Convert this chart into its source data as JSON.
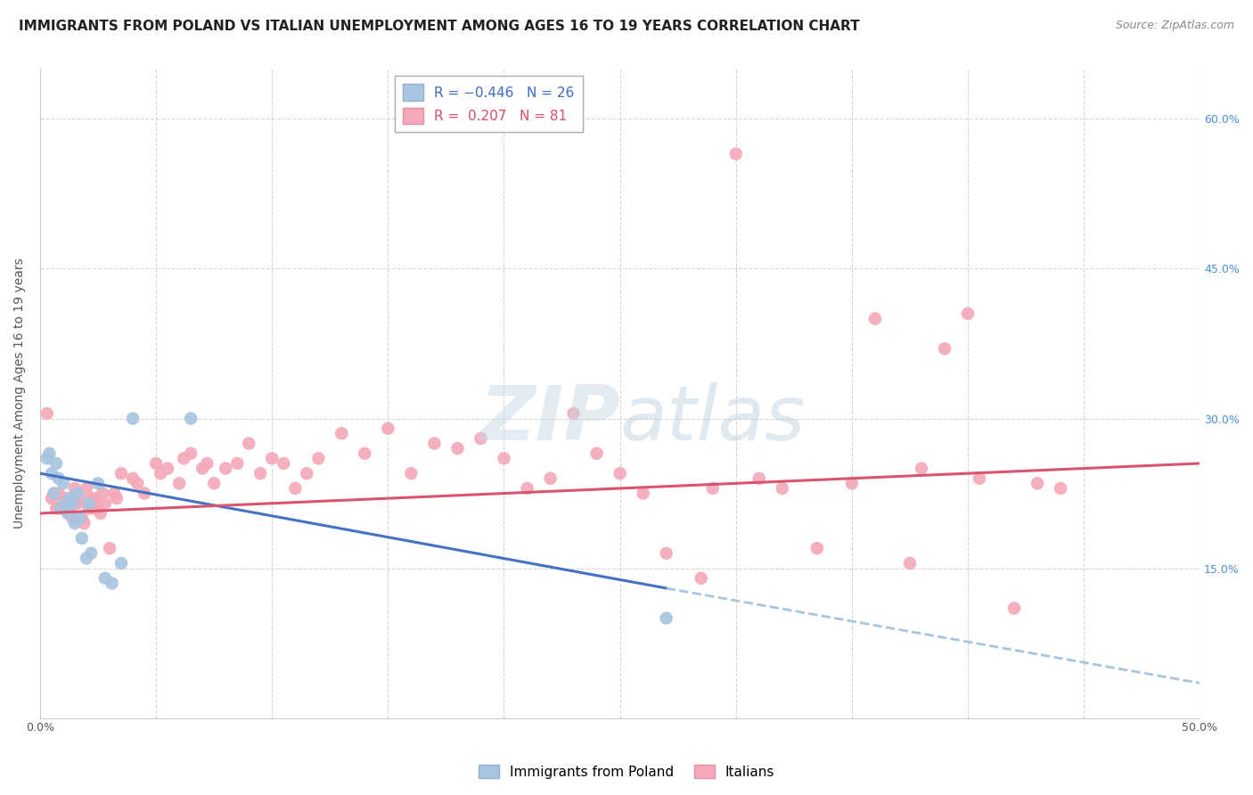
{
  "title": "IMMIGRANTS FROM POLAND VS ITALIAN UNEMPLOYMENT AMONG AGES 16 TO 19 YEARS CORRELATION CHART",
  "source": "Source: ZipAtlas.com",
  "ylabel": "Unemployment Among Ages 16 to 19 years",
  "right_ytick_vals": [
    15.0,
    30.0,
    45.0,
    60.0
  ],
  "xlim": [
    0.0,
    50.0
  ],
  "ylim": [
    0.0,
    65.0
  ],
  "poland_scatter": [
    [
      0.3,
      26.0
    ],
    [
      0.4,
      26.5
    ],
    [
      0.5,
      24.5
    ],
    [
      0.6,
      22.5
    ],
    [
      0.7,
      25.5
    ],
    [
      0.8,
      24.0
    ],
    [
      0.9,
      21.0
    ],
    [
      1.0,
      23.5
    ],
    [
      1.1,
      21.5
    ],
    [
      1.2,
      20.5
    ],
    [
      1.3,
      22.0
    ],
    [
      1.4,
      21.5
    ],
    [
      1.5,
      19.5
    ],
    [
      1.6,
      22.5
    ],
    [
      1.7,
      20.0
    ],
    [
      1.8,
      18.0
    ],
    [
      2.0,
      16.0
    ],
    [
      2.1,
      21.5
    ],
    [
      2.2,
      16.5
    ],
    [
      2.5,
      23.5
    ],
    [
      2.8,
      14.0
    ],
    [
      3.1,
      13.5
    ],
    [
      3.5,
      15.5
    ],
    [
      4.0,
      30.0
    ],
    [
      6.5,
      30.0
    ],
    [
      27.0,
      10.0
    ]
  ],
  "italian_scatter": [
    [
      0.3,
      30.5
    ],
    [
      0.5,
      22.0
    ],
    [
      0.6,
      22.5
    ],
    [
      0.7,
      21.0
    ],
    [
      0.8,
      22.5
    ],
    [
      0.9,
      21.0
    ],
    [
      1.0,
      22.0
    ],
    [
      1.1,
      21.5
    ],
    [
      1.2,
      22.0
    ],
    [
      1.3,
      20.5
    ],
    [
      1.4,
      20.0
    ],
    [
      1.5,
      23.0
    ],
    [
      1.6,
      21.5
    ],
    [
      1.7,
      22.0
    ],
    [
      1.8,
      20.0
    ],
    [
      1.9,
      19.5
    ],
    [
      2.0,
      23.0
    ],
    [
      2.1,
      21.0
    ],
    [
      2.2,
      22.0
    ],
    [
      2.3,
      21.0
    ],
    [
      2.4,
      22.0
    ],
    [
      2.5,
      21.0
    ],
    [
      2.6,
      20.5
    ],
    [
      2.7,
      22.5
    ],
    [
      2.8,
      21.5
    ],
    [
      3.0,
      17.0
    ],
    [
      3.2,
      22.5
    ],
    [
      3.3,
      22.0
    ],
    [
      3.5,
      24.5
    ],
    [
      4.0,
      24.0
    ],
    [
      4.2,
      23.5
    ],
    [
      4.5,
      22.5
    ],
    [
      5.0,
      25.5
    ],
    [
      5.2,
      24.5
    ],
    [
      5.5,
      25.0
    ],
    [
      6.0,
      23.5
    ],
    [
      6.2,
      26.0
    ],
    [
      6.5,
      26.5
    ],
    [
      7.0,
      25.0
    ],
    [
      7.2,
      25.5
    ],
    [
      7.5,
      23.5
    ],
    [
      8.0,
      25.0
    ],
    [
      8.5,
      25.5
    ],
    [
      9.0,
      27.5
    ],
    [
      9.5,
      24.5
    ],
    [
      10.0,
      26.0
    ],
    [
      10.5,
      25.5
    ],
    [
      11.0,
      23.0
    ],
    [
      11.5,
      24.5
    ],
    [
      12.0,
      26.0
    ],
    [
      13.0,
      28.5
    ],
    [
      14.0,
      26.5
    ],
    [
      15.0,
      29.0
    ],
    [
      16.0,
      24.5
    ],
    [
      17.0,
      27.5
    ],
    [
      18.0,
      27.0
    ],
    [
      19.0,
      28.0
    ],
    [
      20.0,
      26.0
    ],
    [
      21.0,
      23.0
    ],
    [
      22.0,
      24.0
    ],
    [
      23.0,
      30.5
    ],
    [
      24.0,
      26.5
    ],
    [
      25.0,
      24.5
    ],
    [
      26.0,
      22.5
    ],
    [
      27.0,
      16.5
    ],
    [
      28.5,
      14.0
    ],
    [
      29.0,
      23.0
    ],
    [
      30.0,
      56.5
    ],
    [
      31.0,
      24.0
    ],
    [
      32.0,
      23.0
    ],
    [
      33.5,
      17.0
    ],
    [
      35.0,
      23.5
    ],
    [
      36.0,
      40.0
    ],
    [
      37.5,
      15.5
    ],
    [
      38.0,
      25.0
    ],
    [
      39.0,
      37.0
    ],
    [
      40.5,
      24.0
    ],
    [
      42.0,
      11.0
    ],
    [
      43.0,
      23.5
    ],
    [
      44.0,
      23.0
    ],
    [
      40.0,
      40.5
    ]
  ],
  "poland_line_solid": {
    "x0": 0.0,
    "y0": 24.5,
    "x1": 27.0,
    "y1": 13.0
  },
  "poland_line_dashed": {
    "x0": 27.0,
    "y0": 13.0,
    "x1": 50.0,
    "y1": 3.5
  },
  "italian_line": {
    "x0": 0.0,
    "y0": 20.5,
    "x1": 50.0,
    "y1": 25.5
  },
  "color_poland_scatter": "#a8c4e0",
  "color_italian_scatter": "#f4a8b8",
  "color_poland_line": "#4472C4",
  "color_polish_line_dashed": "#a8c4e0",
  "color_italian_line": "#d9546e",
  "bg_color": "#ffffff",
  "grid_color": "#cccccc",
  "title_fontsize": 11,
  "source_fontsize": 9,
  "axis_fontsize": 9,
  "ylabel_fontsize": 10
}
